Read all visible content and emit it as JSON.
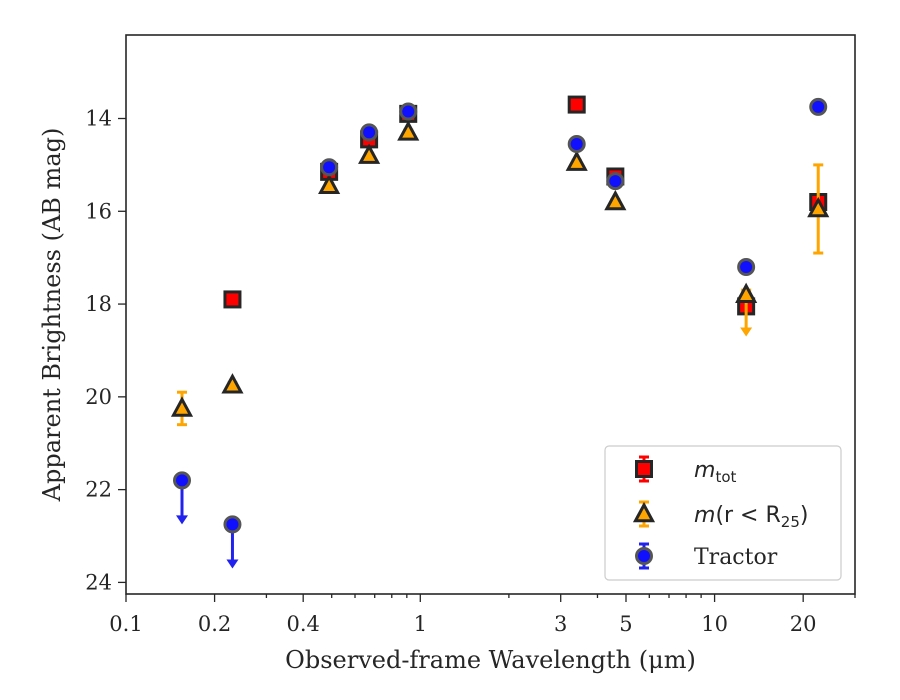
{
  "chart_data": {
    "type": "scatter",
    "title": "",
    "xlabel": "Observed-frame Wavelength (μm)",
    "ylabel": "Apparent Brightness (AB mag)",
    "xscale": "log",
    "yinverted": true,
    "xlim": [
      0.1,
      30
    ],
    "ylim": [
      24.25,
      12.2
    ],
    "xticks": [
      {
        "value": 0.1,
        "label": "0.1"
      },
      {
        "value": 0.2,
        "label": "0.2"
      },
      {
        "value": 0.4,
        "label": "0.4"
      },
      {
        "value": 1,
        "label": "1"
      },
      {
        "value": 3,
        "label": "3"
      },
      {
        "value": 5,
        "label": "5"
      },
      {
        "value": 10,
        "label": "10"
      },
      {
        "value": 20,
        "label": "20"
      }
    ],
    "yticks": [
      {
        "value": 14,
        "label": "14"
      },
      {
        "value": 16,
        "label": "16"
      },
      {
        "value": 18,
        "label": "18"
      },
      {
        "value": 20,
        "label": "20"
      },
      {
        "value": 22,
        "label": "22"
      },
      {
        "value": 24,
        "label": "24"
      }
    ],
    "grid": false,
    "legend_position": "bottom-right",
    "series": [
      {
        "name": "m_tot",
        "legend": {
          "base": "m",
          "sub": "tot",
          "rest": ""
        },
        "marker": "square",
        "color": "#ff0000",
        "edgecolor": "#262626",
        "errorcolor": "#ff0000",
        "points": [
          {
            "x": 0.23,
            "y": 17.9,
            "err": 0.1
          },
          {
            "x": 0.49,
            "y": 15.15,
            "err": 0.1
          },
          {
            "x": 0.67,
            "y": 14.45,
            "err": 0.1
          },
          {
            "x": 0.91,
            "y": 13.9,
            "err": 0.1
          },
          {
            "x": 3.4,
            "y": 13.7,
            "err": 0.05
          },
          {
            "x": 4.6,
            "y": 15.25,
            "err": 0.1
          },
          {
            "x": 12.8,
            "y": 18.05,
            "err": 0.1
          },
          {
            "x": 22.5,
            "y": 15.8,
            "err": 0.1
          }
        ]
      },
      {
        "name": "m(r < R25)",
        "legend": {
          "base": "m",
          "sub": "25",
          "rest": "(r < R"
        },
        "marker": "triangle",
        "color": "#ffa500",
        "edgecolor": "#262626",
        "errorcolor": "#ffa500",
        "points": [
          {
            "x": 0.155,
            "y": 20.25,
            "err": 0.35
          },
          {
            "x": 0.23,
            "y": 19.75,
            "err": 0.05
          },
          {
            "x": 0.49,
            "y": 15.45,
            "err": 0.05
          },
          {
            "x": 0.67,
            "y": 14.8,
            "err": 0.05
          },
          {
            "x": 0.91,
            "y": 14.3,
            "err": 0.05
          },
          {
            "x": 3.4,
            "y": 14.95,
            "err": 0.05
          },
          {
            "x": 4.6,
            "y": 15.8,
            "err": 0.05
          },
          {
            "x": 12.8,
            "y": 17.8,
            "err": 0.1,
            "upper_limit": true,
            "limit_to": 18.7
          },
          {
            "x": 22.5,
            "y": 15.95,
            "err": 0.95
          }
        ]
      },
      {
        "name": "Tractor",
        "legend": {
          "base": "Tractor",
          "sub": "",
          "rest": ""
        },
        "marker": "circle",
        "color": "#1010ff",
        "edgecolor": "#555555",
        "errorcolor": "#2222ee",
        "points": [
          {
            "x": 0.155,
            "y": 21.8,
            "err": 0.05,
            "upper_limit": true,
            "limit_to": 22.75
          },
          {
            "x": 0.23,
            "y": 22.75,
            "err": 0.05,
            "upper_limit": true,
            "limit_to": 23.7
          },
          {
            "x": 0.49,
            "y": 15.05,
            "err": 0.1
          },
          {
            "x": 0.67,
            "y": 14.3,
            "err": 0.1
          },
          {
            "x": 0.91,
            "y": 13.85,
            "err": 0.1
          },
          {
            "x": 3.4,
            "y": 14.55,
            "err": 0.1
          },
          {
            "x": 4.6,
            "y": 15.35,
            "err": 0.1
          },
          {
            "x": 12.8,
            "y": 17.2,
            "err": 0.1
          },
          {
            "x": 22.5,
            "y": 13.75,
            "err": 0.05
          }
        ]
      }
    ]
  }
}
